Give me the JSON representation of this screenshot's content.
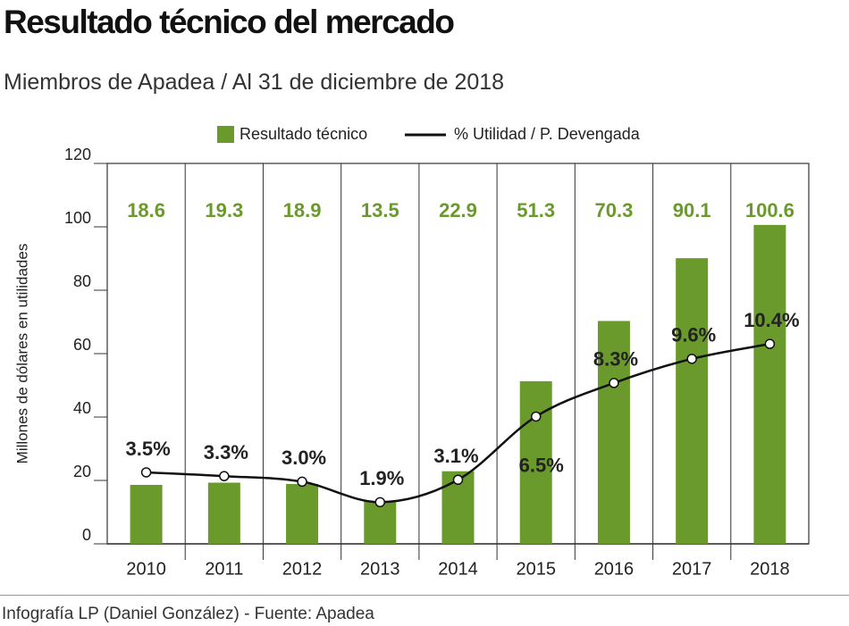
{
  "chart_data": {
    "type": "bar-line",
    "title": "Resultado técnico del mercado",
    "subtitle": "Miembros de Apadea / Al 31 de diciembre de 2018",
    "y_label": "Millones de dólares en utilidades",
    "source": "Infografía LP (Daniel González) - Fuente: Apadea",
    "categories": [
      "2010",
      "2011",
      "2012",
      "2013",
      "2014",
      "2015",
      "2016",
      "2017",
      "2018"
    ],
    "series": [
      {
        "name": "Resultado técnico",
        "type": "bar",
        "color": "#6b9a2c",
        "values": [
          18.6,
          19.3,
          18.9,
          13.5,
          22.9,
          51.3,
          70.3,
          90.1,
          100.6
        ]
      },
      {
        "name": "% Utilidad / P. Devengada",
        "type": "line",
        "color": "#111111",
        "axis": "y2",
        "values": [
          3.5,
          3.3,
          3.0,
          1.9,
          3.1,
          6.5,
          8.3,
          9.6,
          10.4
        ],
        "value_labels": [
          "3.5%",
          "3.3%",
          "3.0%",
          "1.9%",
          "3.1%",
          "6.5%",
          "8.3%",
          "9.6%",
          "10.4%"
        ]
      }
    ],
    "ylim": [
      0,
      120
    ],
    "yticks": [
      0,
      20,
      40,
      60,
      80,
      100,
      120
    ],
    "y2lim": [
      -0.34,
      20.1
    ]
  }
}
